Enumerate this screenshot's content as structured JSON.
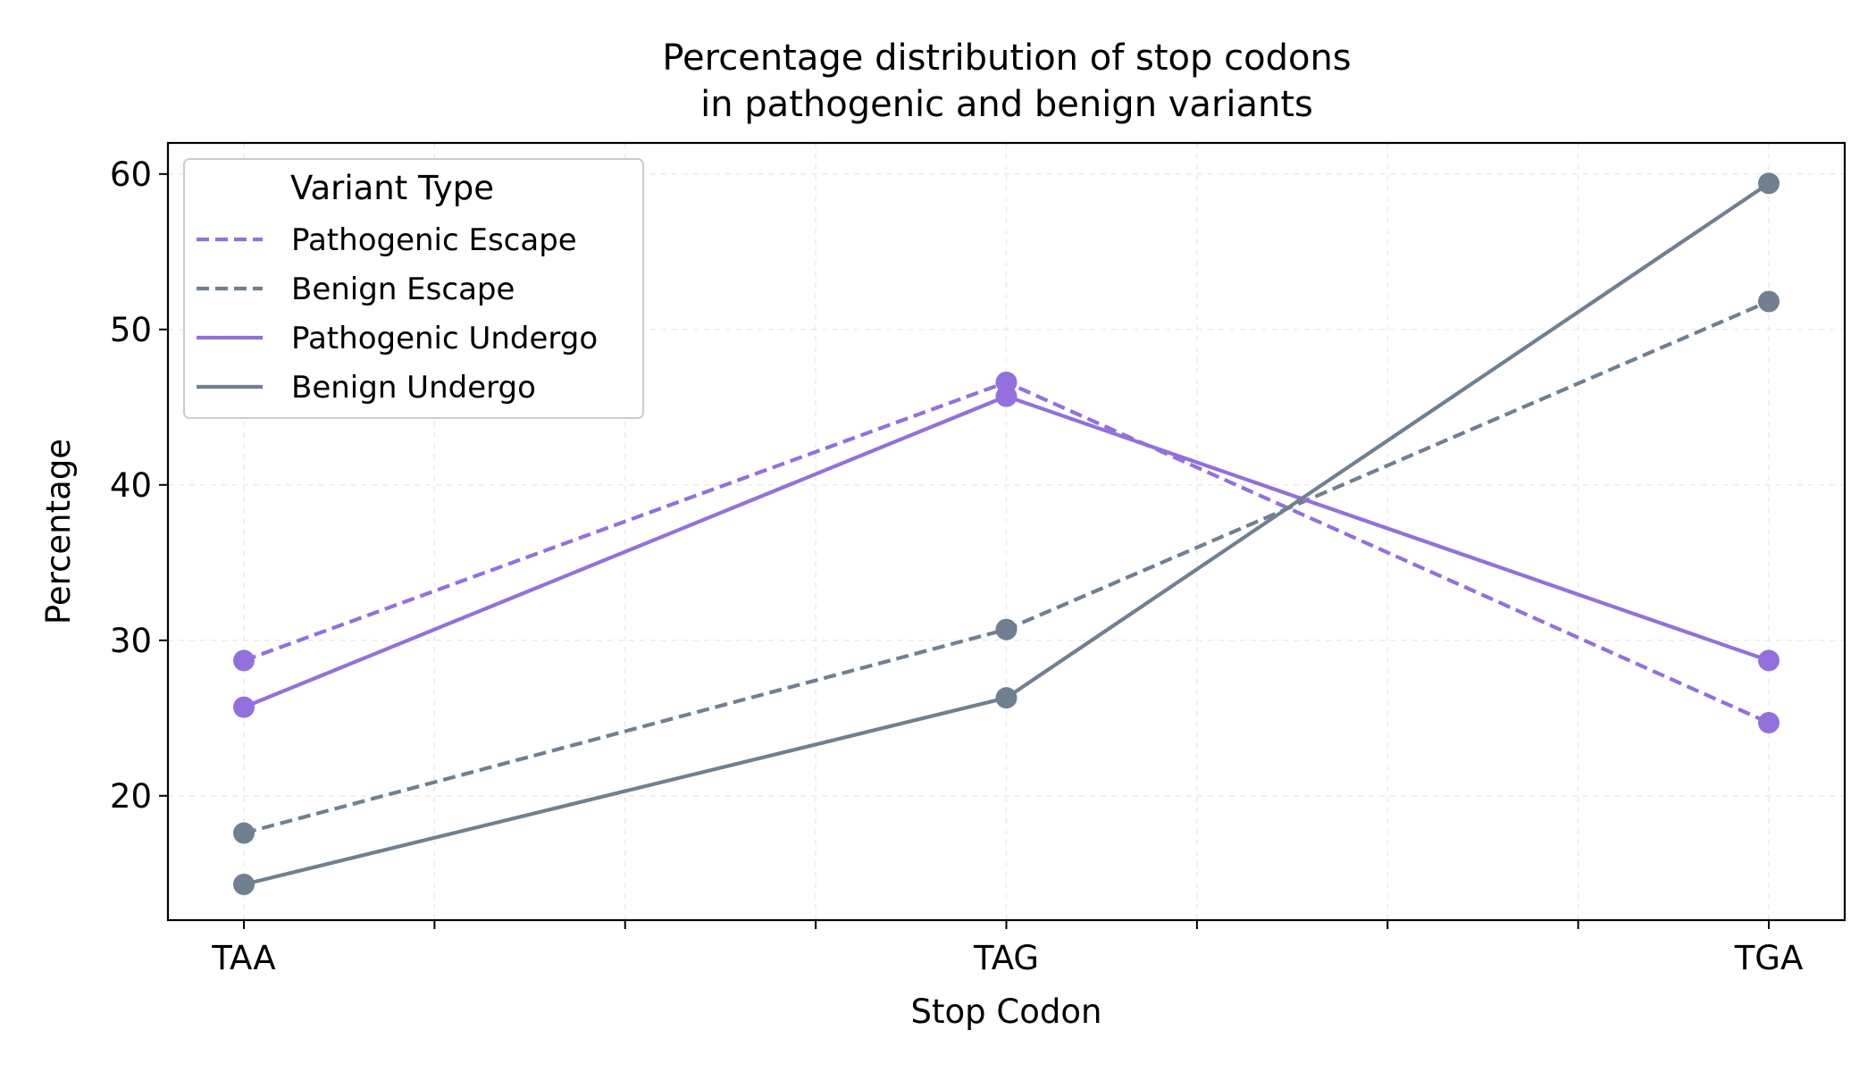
{
  "chart_data": {
    "type": "line",
    "title": "Percentage distribution of stop codons\nin pathogenic and benign variants",
    "xlabel": "Stop Codon",
    "ylabel": "Percentage",
    "categories": [
      "TAA",
      "TAG",
      "TGA"
    ],
    "y_ticks": [
      20,
      30,
      40,
      50,
      60
    ],
    "ylim": [
      12,
      62
    ],
    "grid": true,
    "legend": {
      "title": "Variant Type",
      "placement": "top-left"
    },
    "series": [
      {
        "name": "Pathogenic Escape",
        "values": [
          28.7,
          46.6,
          24.7
        ],
        "color": "#9370DB",
        "style": "dashed"
      },
      {
        "name": "Benign Escape",
        "values": [
          17.6,
          30.7,
          51.8
        ],
        "color": "#708090",
        "style": "dashed"
      },
      {
        "name": "Pathogenic Undergo",
        "values": [
          25.7,
          45.7,
          28.7
        ],
        "color": "#9370DB",
        "style": "solid"
      },
      {
        "name": "Benign Undergo",
        "values": [
          14.3,
          26.3,
          59.4
        ],
        "color": "#708090",
        "style": "solid"
      }
    ]
  }
}
